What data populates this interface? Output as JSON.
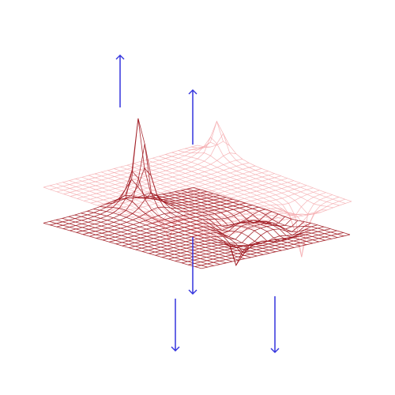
{
  "colors": {
    "background": "#ffffff",
    "back_surface": "#f4a9ad",
    "front_surface": "#a01820",
    "arrow": "#3333dd"
  },
  "diagram": {
    "surfaces": [
      {
        "name": "back-surface",
        "kind": "wireframe-mesh",
        "features": [
          {
            "type": "source",
            "direction": "up"
          },
          {
            "type": "sink",
            "direction": "down"
          },
          {
            "type": "sink",
            "direction": "down"
          }
        ]
      },
      {
        "name": "front-surface",
        "kind": "wireframe-mesh",
        "features": [
          {
            "type": "source",
            "direction": "up"
          },
          {
            "type": "sink",
            "direction": "down"
          },
          {
            "type": "ring-depression"
          }
        ]
      }
    ]
  }
}
